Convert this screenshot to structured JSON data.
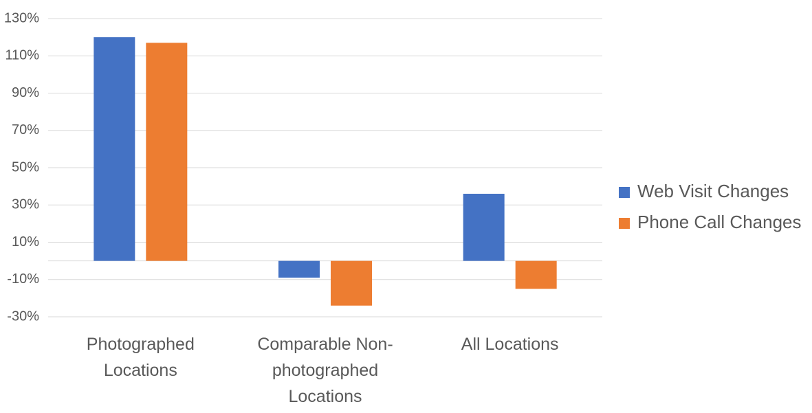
{
  "chart_data": {
    "type": "bar",
    "categories": [
      "Photographed Locations",
      "Comparable Non-photographed Locations",
      "All Locations"
    ],
    "series": [
      {
        "name": "Web Visit Changes",
        "color": "#4472c4",
        "values": [
          120,
          -9,
          36
        ]
      },
      {
        "name": "Phone Call Changes",
        "color": "#ed7d31",
        "values": [
          117,
          -24,
          -15
        ]
      }
    ],
    "ylim": [
      -30,
      130
    ],
    "yticks": [
      {
        "value": -30,
        "label": "-30%"
      },
      {
        "value": -10,
        "label": "-10%"
      },
      {
        "value": 10,
        "label": "10%"
      },
      {
        "value": 30,
        "label": "30%"
      },
      {
        "value": 50,
        "label": "50%"
      },
      {
        "value": 70,
        "label": "70%"
      },
      {
        "value": 90,
        "label": "90%"
      },
      {
        "value": 110,
        "label": "110%"
      },
      {
        "value": 130,
        "label": "130%"
      }
    ],
    "grid": true,
    "legend": "right"
  }
}
